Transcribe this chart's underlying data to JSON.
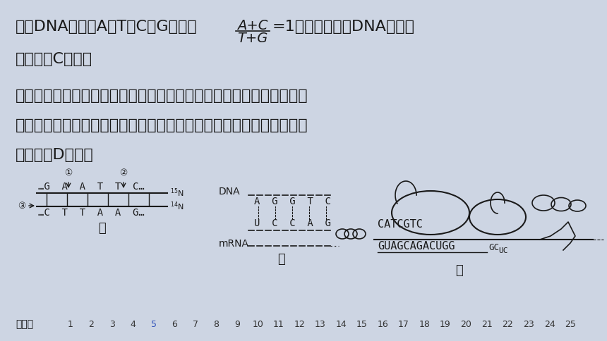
{
  "bg_color": "#cdd5e3",
  "text_color": "#1a1a1a",
  "line1_pre": "双链DNA分子中A＝T、C＝G，所以",
  "fraction_num": "A+C",
  "fraction_den": "T+G",
  "line1_post": "=1，不能表现出DNA分子的",
  "line2": "特异性，C错误；",
  "line3": "丙图中转录和翻译同时进行，说明该生物为原核生物，故可以表示细菌",
  "line4": "的转录和翻译，根尖细胞没有叶绿体，所以转录只能发生在细胞核和线",
  "line5": "粒体中，D正确。",
  "bottom_label": "选择题",
  "numbers": [
    "1",
    "2",
    "3",
    "4",
    "5",
    "6",
    "7",
    "8",
    "9",
    "10",
    "11",
    "12",
    "13",
    "14",
    "15",
    "16",
    "17",
    "18",
    "19",
    "20",
    "21",
    "22",
    "23",
    "24",
    "25"
  ],
  "highlight_num": "5",
  "highlight_color": "#3355bb",
  "normal_num_color": "#333333",
  "font_size_main": 16,
  "font_size_small": 10,
  "font_size_bottom": 9
}
